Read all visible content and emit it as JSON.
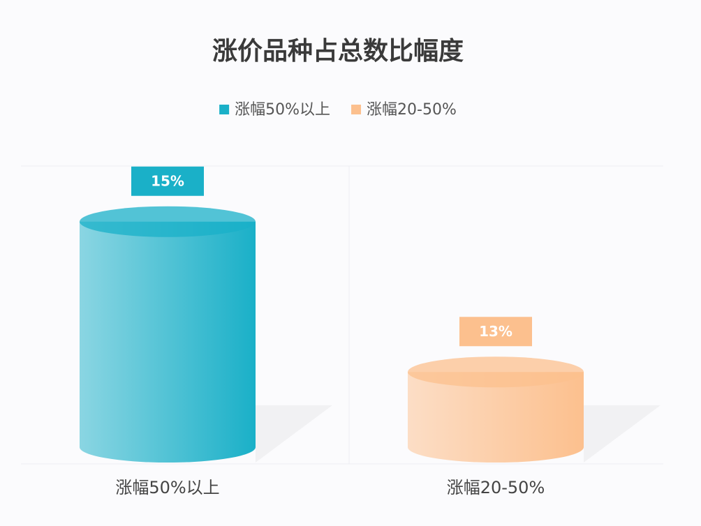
{
  "chart_data": {
    "type": "cylinder",
    "title": "涨价品种占总数比幅度",
    "categories": [
      "涨幅50%以上",
      "涨幅20-50%"
    ],
    "series": [
      {
        "name": "涨幅50%以上",
        "color": "#1ab0c8",
        "values": [
          15,
          null
        ],
        "value_labels": [
          "15%",
          null
        ]
      },
      {
        "name": "涨幅20-50%",
        "color": "#fcc08e",
        "values": [
          null,
          13
        ],
        "value_labels": [
          null,
          "13%"
        ]
      }
    ],
    "ylim": [
      12,
      16
    ]
  }
}
